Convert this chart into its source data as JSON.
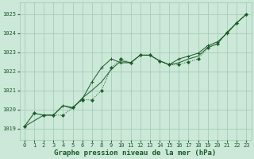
{
  "title": "Graphe pression niveau de la mer (hPa)",
  "bg_color": "#cce8d8",
  "grid_color": "#9dc8b0",
  "line_color": "#1a5c28",
  "x_ticks": [
    0,
    1,
    2,
    3,
    4,
    5,
    6,
    7,
    8,
    9,
    10,
    11,
    12,
    13,
    14,
    15,
    16,
    17,
    18,
    19,
    20,
    21,
    22,
    23
  ],
  "y_ticks": [
    1019,
    1020,
    1021,
    1022,
    1023,
    1024,
    1025
  ],
  "ylim": [
    1018.4,
    1025.6
  ],
  "xlim": [
    -0.5,
    23.5
  ],
  "series1_x": [
    0,
    1,
    2,
    3,
    4,
    5,
    6,
    7,
    8,
    9,
    10,
    11,
    12,
    13,
    14,
    15,
    16,
    17,
    18,
    19,
    20,
    21,
    22,
    23
  ],
  "series1_y": [
    1019.1,
    1019.8,
    1019.7,
    1019.7,
    1019.7,
    1020.1,
    1020.5,
    1020.5,
    1021.0,
    1022.2,
    1022.65,
    1022.45,
    1022.85,
    1022.85,
    1022.55,
    1022.35,
    1022.35,
    1022.5,
    1022.65,
    1023.25,
    1023.45,
    1024.05,
    1024.55,
    1025.0
  ],
  "series2_x": [
    0,
    2,
    3,
    4,
    5,
    6,
    7,
    8,
    9,
    10,
    11,
    12,
    13,
    14,
    15,
    16,
    17,
    18,
    19,
    20,
    21,
    22,
    23
  ],
  "series2_y": [
    1019.1,
    1019.7,
    1019.7,
    1020.2,
    1020.05,
    1020.6,
    1021.0,
    1021.45,
    1022.1,
    1022.55,
    1022.45,
    1022.85,
    1022.85,
    1022.55,
    1022.35,
    1022.45,
    1022.65,
    1022.8,
    1023.25,
    1023.45,
    1024.05,
    1024.55,
    1025.0
  ],
  "series3_x": [
    0,
    1,
    2,
    3,
    4,
    5,
    6,
    7,
    8,
    9,
    10,
    11,
    12,
    13,
    14,
    15,
    16,
    17,
    18,
    19,
    20,
    21,
    22,
    23
  ],
  "series3_y": [
    1019.1,
    1019.8,
    1019.7,
    1019.7,
    1020.2,
    1020.1,
    1020.55,
    1021.45,
    1022.2,
    1022.65,
    1022.45,
    1022.45,
    1022.85,
    1022.85,
    1022.55,
    1022.35,
    1022.65,
    1022.8,
    1022.95,
    1023.35,
    1023.55,
    1024.0,
    1024.55,
    1025.0
  ],
  "title_fontsize": 6.5,
  "tick_fontsize": 5.0
}
